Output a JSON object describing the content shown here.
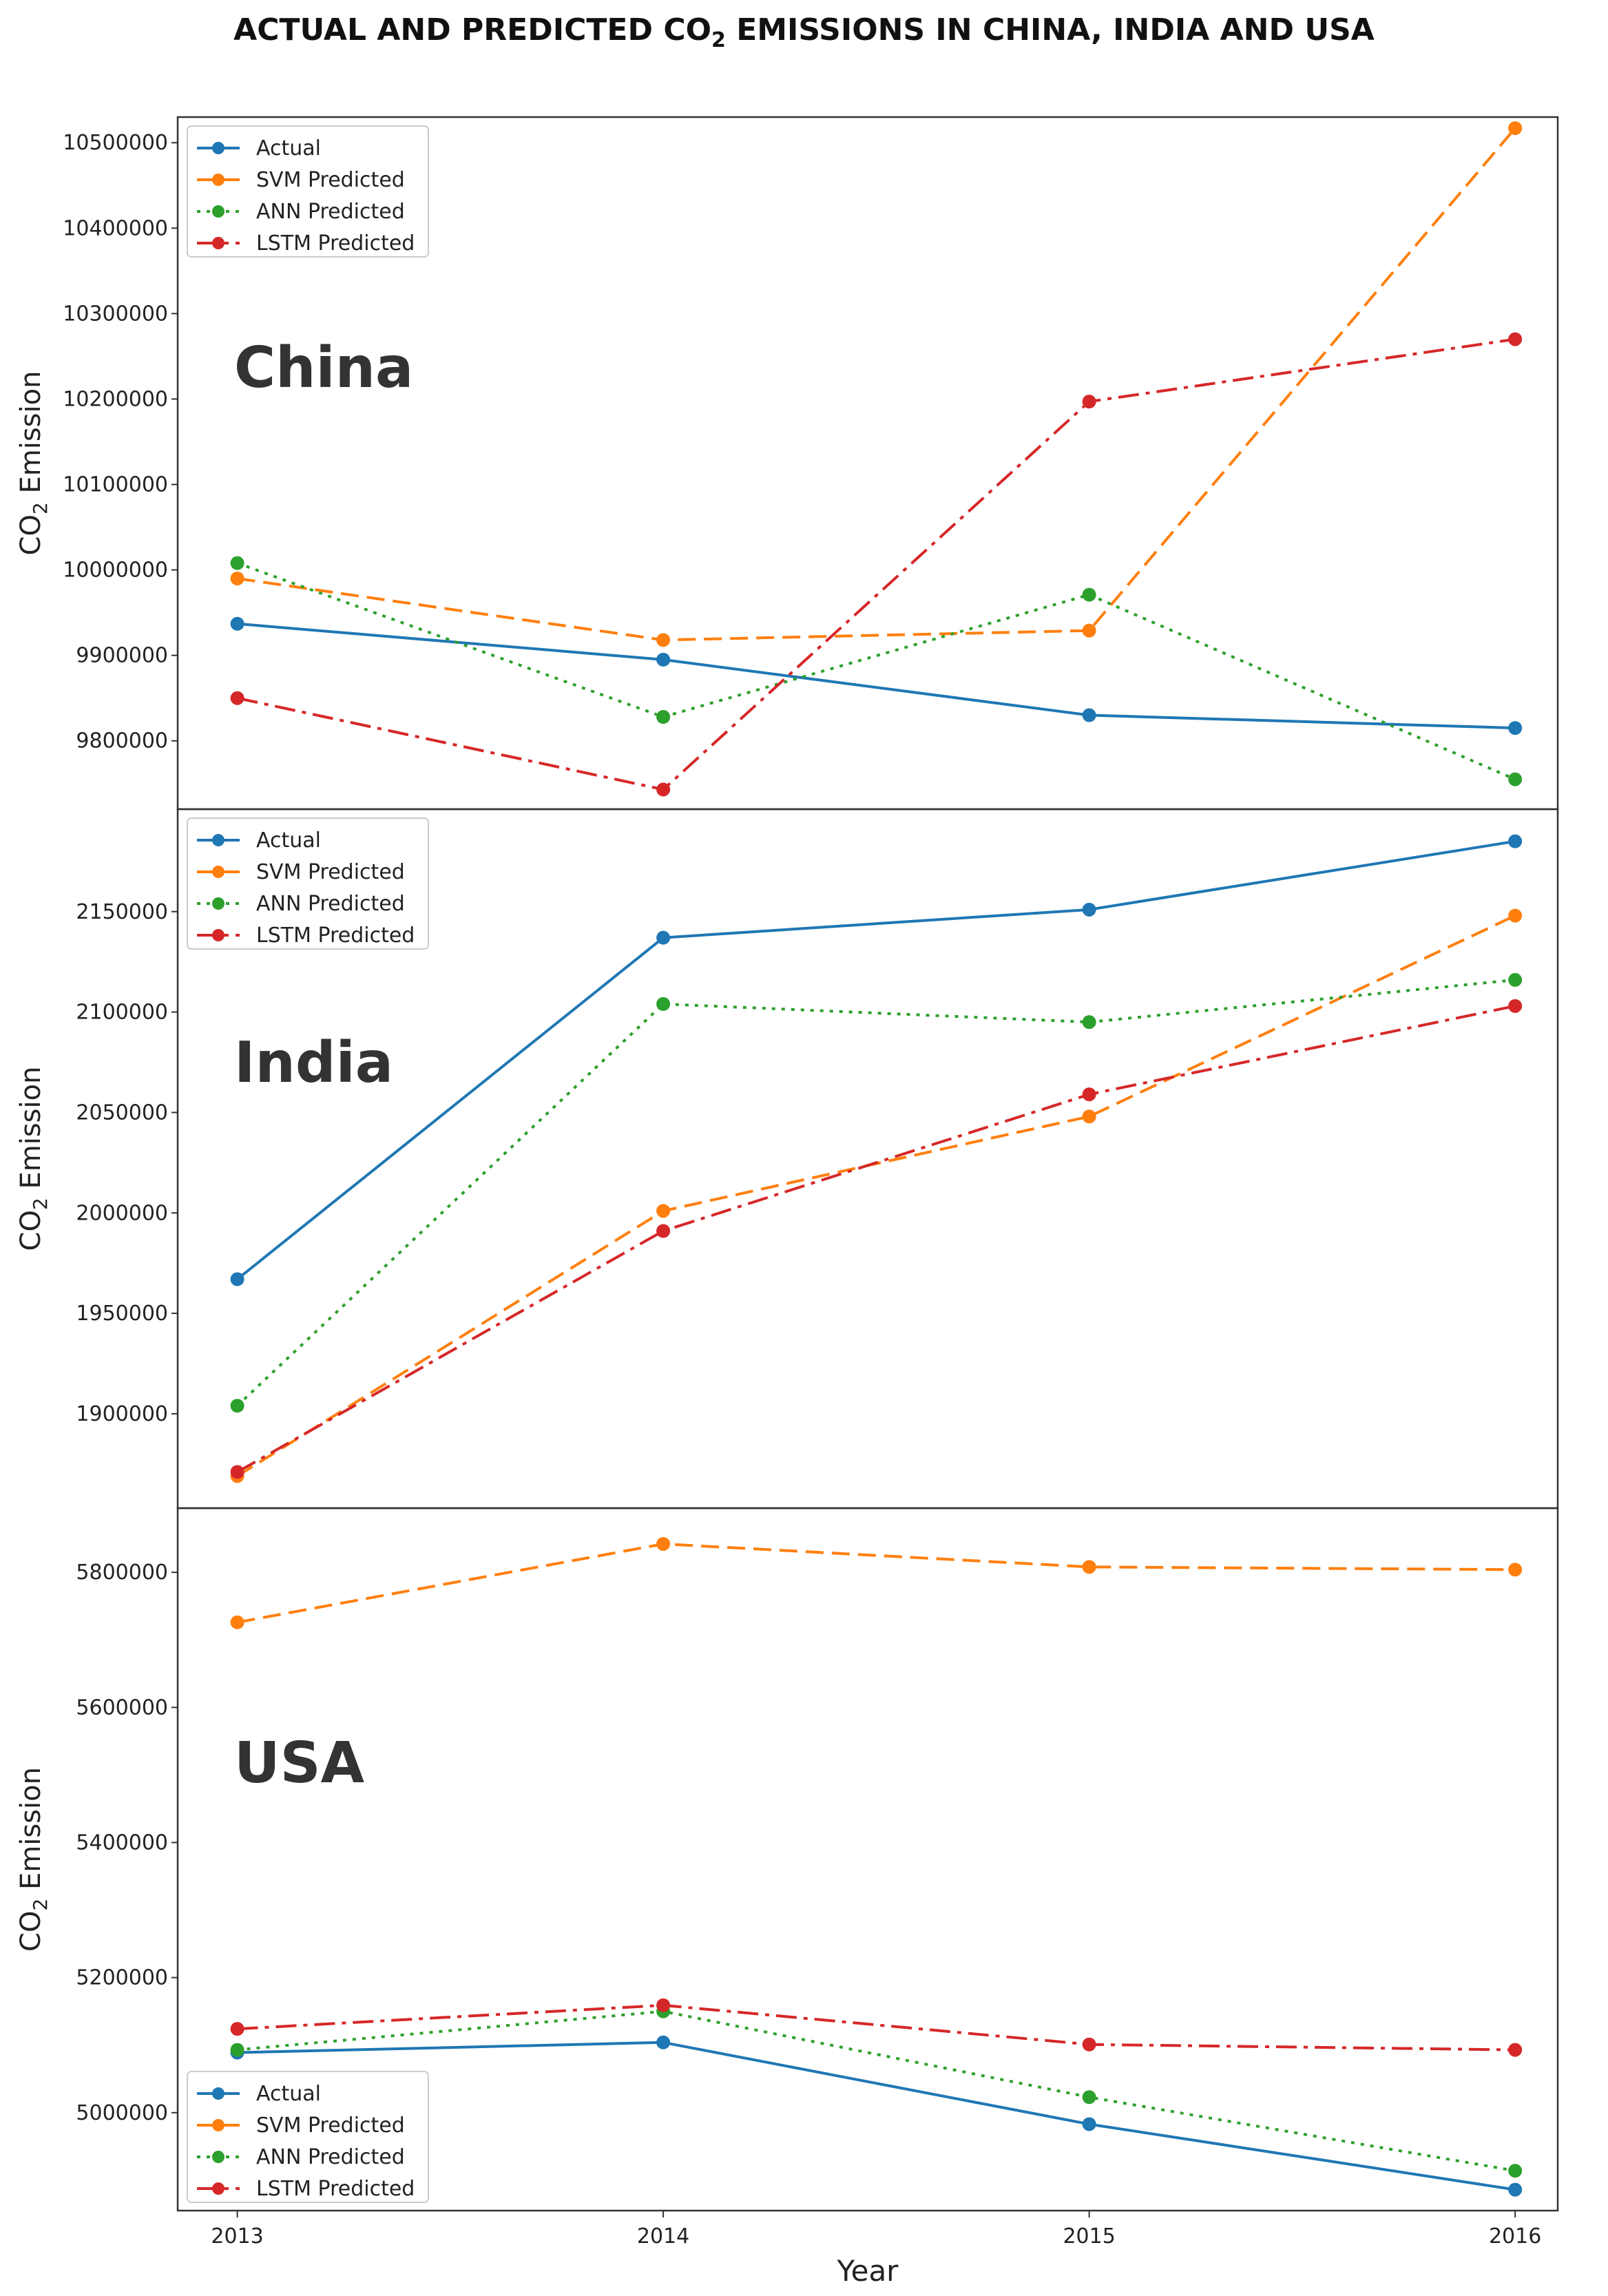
{
  "figure": {
    "title_main": "ACTUAL AND PREDICTED CO",
    "title_sub": "2",
    "title_rest": " EMISSIONS  IN CHINA, INDIA AND USA"
  },
  "colors": {
    "Actual": "#1f77b4",
    "SVM Predicted": "#ff7f0e",
    "ANN Predicted": "#2ca02c",
    "LSTM Predicted": "#d62728"
  },
  "chart_data": [
    {
      "type": "line",
      "panel_label": "China",
      "x": [
        2013,
        2014,
        2015,
        2016
      ],
      "ylabel_main": "CO",
      "ylabel_sub": "2",
      "ylabel_rest": " Emission",
      "xlabel": "",
      "ylim": [
        9720000,
        10530000
      ],
      "yticks": [
        9800000,
        9900000,
        10000000,
        10100000,
        10200000,
        10300000,
        10400000,
        10500000
      ],
      "legend_position": "top-left",
      "series": [
        {
          "name": "Actual",
          "style": "solid",
          "values": [
            9937000,
            9895000,
            9830000,
            9815000
          ]
        },
        {
          "name": "SVM Predicted",
          "style": "dashed",
          "values": [
            9990000,
            9918000,
            9929000,
            10517000
          ]
        },
        {
          "name": "ANN Predicted",
          "style": "dotted",
          "values": [
            10008000,
            9828000,
            9971000,
            9755000
          ]
        },
        {
          "name": "LSTM Predicted",
          "style": "dashdot",
          "values": [
            9850000,
            9743000,
            10197000,
            10270000
          ]
        }
      ]
    },
    {
      "type": "line",
      "panel_label": "India",
      "x": [
        2013,
        2014,
        2015,
        2016
      ],
      "ylabel_main": "CO",
      "ylabel_sub": "2",
      "ylabel_rest": " Emission",
      "xlabel": "",
      "ylim": [
        1853000,
        2201000
      ],
      "yticks": [
        1900000,
        1950000,
        2000000,
        2050000,
        2100000,
        2150000
      ],
      "legend_position": "top-left",
      "series": [
        {
          "name": "Actual",
          "style": "solid",
          "values": [
            1967000,
            2137000,
            2151000,
            2185000
          ]
        },
        {
          "name": "SVM Predicted",
          "style": "dashed",
          "values": [
            1869000,
            2001000,
            2048000,
            2148000
          ]
        },
        {
          "name": "ANN Predicted",
          "style": "dotted",
          "values": [
            1904000,
            2104000,
            2095000,
            2116000
          ]
        },
        {
          "name": "LSTM Predicted",
          "style": "dashdot",
          "values": [
            1871000,
            1991000,
            2059000,
            2103000
          ]
        }
      ]
    },
    {
      "type": "line",
      "panel_label": "USA",
      "x": [
        2013,
        2014,
        2015,
        2016
      ],
      "ylabel_main": "CO",
      "ylabel_sub": "2",
      "ylabel_rest": " Emission",
      "xlabel": "Year",
      "ylim": [
        4855000,
        5895000
      ],
      "yticks": [
        5000000,
        5200000,
        5400000,
        5600000,
        5800000
      ],
      "legend_position": "lower-left",
      "series": [
        {
          "name": "Actual",
          "style": "solid",
          "values": [
            5089000,
            5104000,
            4983000,
            4886000
          ]
        },
        {
          "name": "SVM Predicted",
          "style": "dashed",
          "values": [
            5726000,
            5842000,
            5808000,
            5804000
          ]
        },
        {
          "name": "ANN Predicted",
          "style": "dotted",
          "values": [
            5093000,
            5150000,
            5023000,
            4914000
          ]
        },
        {
          "name": "LSTM Predicted",
          "style": "dashdot",
          "values": [
            5124000,
            5159000,
            5101000,
            5093000
          ]
        }
      ]
    }
  ]
}
